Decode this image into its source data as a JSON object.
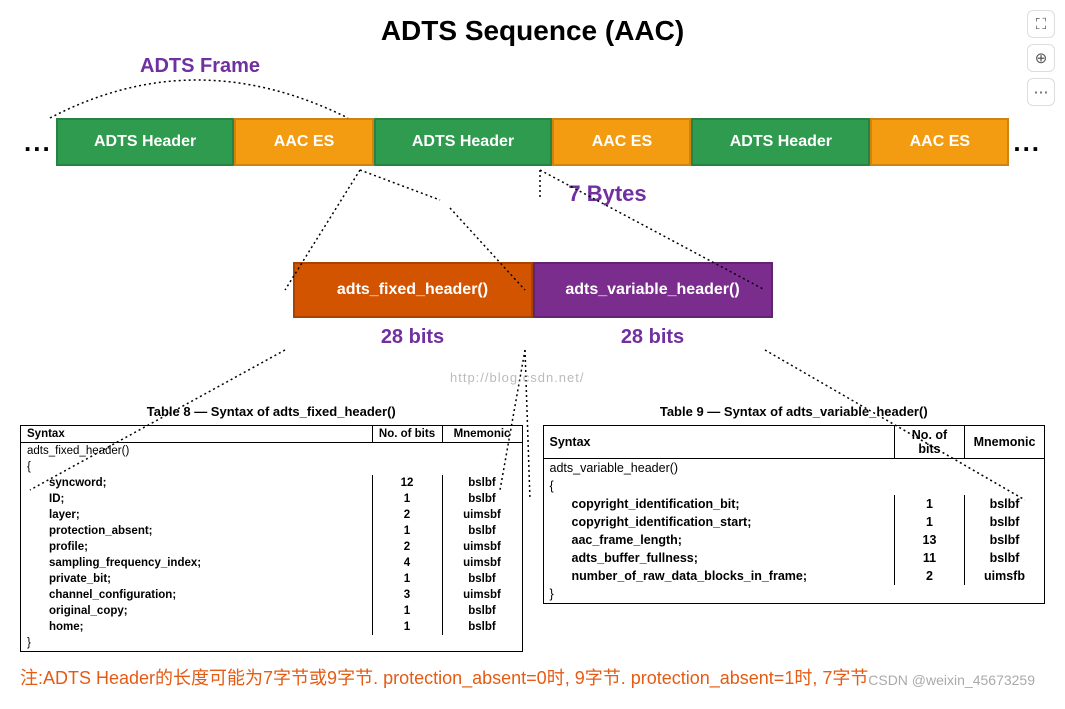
{
  "title": "ADTS Sequence (AAC)",
  "frame_label": "ADTS Frame",
  "seq": {
    "header_label": "ADTS Header",
    "es_label": "AAC ES",
    "dots": "...",
    "header_color": "#2e9b4f",
    "es_color": "#f39c12"
  },
  "bytes_label": "7 Bytes",
  "sub": {
    "fixed_label": "adts_fixed_header()",
    "var_label": "adts_variable_header()",
    "fixed_color": "#d35400",
    "var_color": "#7b2d8e",
    "bits_label": "28 bits"
  },
  "watermark": "http://blog.csdn.net/",
  "table8": {
    "title": "Table 8 — Syntax of adts_fixed_header()",
    "cols": [
      "Syntax",
      "No. of bits",
      "Mnemonic"
    ],
    "func": "adts_fixed_header()",
    "rows": [
      {
        "name": "syncword;",
        "bits": "12",
        "mnem": "bslbf"
      },
      {
        "name": "ID;",
        "bits": "1",
        "mnem": "bslbf"
      },
      {
        "name": "layer;",
        "bits": "2",
        "mnem": "uimsbf"
      },
      {
        "name": "protection_absent;",
        "bits": "1",
        "mnem": "bslbf"
      },
      {
        "name": "profile;",
        "bits": "2",
        "mnem": "uimsbf"
      },
      {
        "name": "sampling_frequency_index;",
        "bits": "4",
        "mnem": "uimsbf"
      },
      {
        "name": "private_bit;",
        "bits": "1",
        "mnem": "bslbf"
      },
      {
        "name": "channel_configuration;",
        "bits": "3",
        "mnem": "uimsbf"
      },
      {
        "name": "original_copy;",
        "bits": "1",
        "mnem": "bslbf"
      },
      {
        "name": "home;",
        "bits": "1",
        "mnem": "bslbf"
      }
    ]
  },
  "table9": {
    "title": "Table 9 — Syntax of adts_variable_header()",
    "cols": [
      "Syntax",
      "No. of bits",
      "Mnemonic"
    ],
    "func": "adts_variable_header()",
    "rows": [
      {
        "name": "copyright_identification_bit;",
        "bits": "1",
        "mnem": "bslbf"
      },
      {
        "name": "copyright_identification_start;",
        "bits": "1",
        "mnem": "bslbf"
      },
      {
        "name": "aac_frame_length;",
        "bits": "13",
        "mnem": "bslbf"
      },
      {
        "name": "adts_buffer_fullness;",
        "bits": "11",
        "mnem": "bslbf"
      },
      {
        "name": "number_of_raw_data_blocks_in_frame;",
        "bits": "2",
        "mnem": "uimsfb"
      }
    ]
  },
  "footnote": "注:ADTS Header的长度可能为7字节或9字节. protection_absent=0时, 9字节. protection_absent=1时, 7字节",
  "credit": "CSDN @weixin_45673259",
  "accent_color": "#7030a0",
  "footnote_color": "#e55b13"
}
